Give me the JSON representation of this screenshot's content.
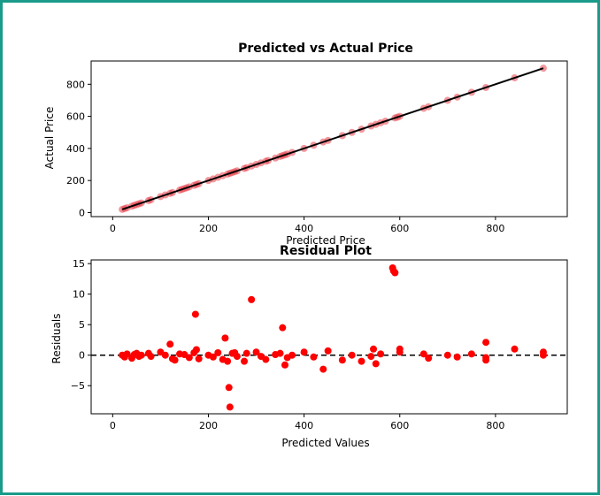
{
  "chart_data": [
    {
      "type": "scatter",
      "title": "Predicted vs Actual Price",
      "xlabel": "Predicted Price",
      "ylabel": "Actual Price",
      "xlim": [
        -45,
        950
      ],
      "ylim": [
        -25,
        945
      ],
      "x_ticks": [
        0,
        200,
        400,
        600,
        800
      ],
      "y_ticks": [
        0,
        200,
        400,
        600,
        800
      ],
      "grid": false,
      "point_color": "#e8404a",
      "line_color": "#000000",
      "reference_line": {
        "from": [
          20,
          20
        ],
        "to": [
          900,
          900
        ]
      },
      "points": [
        [
          20,
          20
        ],
        [
          25,
          25
        ],
        [
          30,
          30
        ],
        [
          40,
          40
        ],
        [
          45,
          45
        ],
        [
          50,
          50
        ],
        [
          55,
          55
        ],
        [
          60,
          60
        ],
        [
          75,
          75
        ],
        [
          80,
          80
        ],
        [
          100,
          100
        ],
        [
          110,
          110
        ],
        [
          120,
          120
        ],
        [
          125,
          125
        ],
        [
          140,
          140
        ],
        [
          145,
          145
        ],
        [
          150,
          150
        ],
        [
          155,
          155
        ],
        [
          160,
          160
        ],
        [
          170,
          170
        ],
        [
          175,
          175
        ],
        [
          180,
          180
        ],
        [
          200,
          200
        ],
        [
          210,
          210
        ],
        [
          220,
          220
        ],
        [
          230,
          230
        ],
        [
          240,
          240
        ],
        [
          245,
          245
        ],
        [
          250,
          250
        ],
        [
          255,
          255
        ],
        [
          260,
          260
        ],
        [
          275,
          275
        ],
        [
          280,
          280
        ],
        [
          290,
          290
        ],
        [
          300,
          300
        ],
        [
          310,
          310
        ],
        [
          320,
          320
        ],
        [
          325,
          325
        ],
        [
          340,
          340
        ],
        [
          350,
          350
        ],
        [
          355,
          355
        ],
        [
          360,
          360
        ],
        [
          365,
          365
        ],
        [
          375,
          375
        ],
        [
          400,
          400
        ],
        [
          420,
          420
        ],
        [
          440,
          440
        ],
        [
          450,
          450
        ],
        [
          480,
          480
        ],
        [
          500,
          500
        ],
        [
          520,
          520
        ],
        [
          540,
          540
        ],
        [
          550,
          550
        ],
        [
          560,
          560
        ],
        [
          570,
          570
        ],
        [
          590,
          590
        ],
        [
          595,
          595
        ],
        [
          600,
          600
        ],
        [
          650,
          650
        ],
        [
          660,
          660
        ],
        [
          700,
          700
        ],
        [
          720,
          720
        ],
        [
          750,
          750
        ],
        [
          780,
          780
        ],
        [
          840,
          840
        ],
        [
          900,
          900
        ]
      ]
    },
    {
      "type": "scatter",
      "title": "Residual Plot",
      "xlabel": "Predicted Values",
      "ylabel": "Residuals",
      "xlim": [
        -45,
        950
      ],
      "ylim": [
        -9.6,
        15.6
      ],
      "x_ticks": [
        0,
        200,
        400,
        600,
        800
      ],
      "y_ticks": [
        -5,
        0,
        5,
        10,
        15
      ],
      "grid": false,
      "point_color": "#ff0000",
      "reference_line": {
        "y": 0,
        "style": "dashed",
        "color": "#000000"
      },
      "points": [
        [
          20,
          0
        ],
        [
          25,
          -0.3
        ],
        [
          30,
          0.2
        ],
        [
          40,
          -0.5
        ],
        [
          45,
          0.1
        ],
        [
          50,
          0.3
        ],
        [
          55,
          -0.2
        ],
        [
          60,
          0
        ],
        [
          75,
          0.3
        ],
        [
          80,
          -0.2
        ],
        [
          100,
          0.5
        ],
        [
          110,
          0
        ],
        [
          120,
          1.8
        ],
        [
          125,
          -0.6
        ],
        [
          130,
          -0.8
        ],
        [
          140,
          0.2
        ],
        [
          150,
          0.1
        ],
        [
          160,
          -0.4
        ],
        [
          170,
          0.4
        ],
        [
          173,
          6.7
        ],
        [
          175,
          0.9
        ],
        [
          180,
          -0.6
        ],
        [
          200,
          0
        ],
        [
          210,
          -0.3
        ],
        [
          220,
          0.4
        ],
        [
          230,
          -0.7
        ],
        [
          235,
          2.8
        ],
        [
          240,
          -1
        ],
        [
          243,
          -5.3
        ],
        [
          245,
          -8.5
        ],
        [
          250,
          0.3
        ],
        [
          255,
          0.4
        ],
        [
          260,
          -0.2
        ],
        [
          275,
          -1
        ],
        [
          280,
          0.3
        ],
        [
          290,
          9.1
        ],
        [
          300,
          0.5
        ],
        [
          310,
          -0.2
        ],
        [
          320,
          -0.7
        ],
        [
          340,
          0.1
        ],
        [
          350,
          0.3
        ],
        [
          355,
          4.5
        ],
        [
          360,
          -1.6
        ],
        [
          365,
          -0.4
        ],
        [
          375,
          0
        ],
        [
          400,
          0.5
        ],
        [
          420,
          -0.3
        ],
        [
          440,
          -2.3
        ],
        [
          450,
          0.7
        ],
        [
          480,
          -0.8
        ],
        [
          500,
          0
        ],
        [
          520,
          -1
        ],
        [
          540,
          -0.2
        ],
        [
          545,
          1
        ],
        [
          550,
          -1.4
        ],
        [
          560,
          0.2
        ],
        [
          585,
          14.3
        ],
        [
          587,
          13.8
        ],
        [
          590,
          13.5
        ],
        [
          600,
          1
        ],
        [
          600,
          0.5
        ],
        [
          650,
          0.2
        ],
        [
          660,
          -0.5
        ],
        [
          700,
          0
        ],
        [
          720,
          -0.3
        ],
        [
          750,
          0.2
        ],
        [
          780,
          -0.4
        ],
        [
          780,
          2.1
        ],
        [
          780,
          -0.8
        ],
        [
          840,
          1
        ],
        [
          900,
          0.5
        ],
        [
          900,
          0
        ]
      ]
    }
  ]
}
